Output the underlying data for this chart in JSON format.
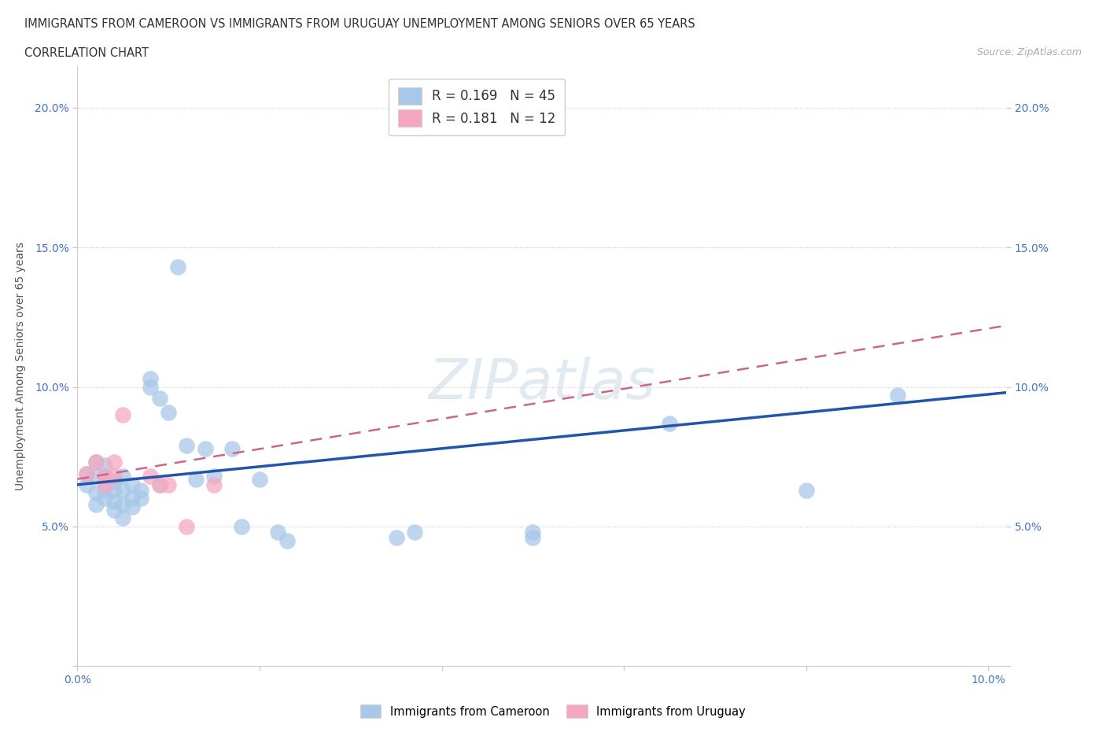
{
  "title_line1": "IMMIGRANTS FROM CAMEROON VS IMMIGRANTS FROM URUGUAY UNEMPLOYMENT AMONG SENIORS OVER 65 YEARS",
  "title_line2": "CORRELATION CHART",
  "source_text": "Source: ZipAtlas.com",
  "ylabel": "Unemployment Among Seniors over 65 years",
  "cameroon_color": "#a8c8e8",
  "uruguay_color": "#f4a8c0",
  "trend_cam_color": "#2255aa",
  "trend_uru_color": "#cc6688",
  "xlim": [
    0.0,
    0.102
  ],
  "ylim": [
    0.0,
    0.215
  ],
  "xticks": [
    0.0,
    0.02,
    0.04,
    0.06,
    0.08,
    0.1
  ],
  "xtick_labels": [
    "0.0%",
    "",
    "",
    "",
    "",
    "10.0%"
  ],
  "yticks": [
    0.0,
    0.05,
    0.1,
    0.15,
    0.2
  ],
  "ytick_labels": [
    "",
    "5.0%",
    "10.0%",
    "15.0%",
    "20.0%"
  ],
  "cameroon_R": "0.169",
  "cameroon_N": "45",
  "uruguay_R": "0.181",
  "uruguay_N": "12",
  "cameroon_x": [
    0.001,
    0.001,
    0.002,
    0.002,
    0.002,
    0.002,
    0.003,
    0.003,
    0.003,
    0.003,
    0.004,
    0.004,
    0.004,
    0.004,
    0.005,
    0.005,
    0.005,
    0.005,
    0.006,
    0.006,
    0.006,
    0.007,
    0.007,
    0.008,
    0.008,
    0.009,
    0.009,
    0.01,
    0.011,
    0.012,
    0.013,
    0.014,
    0.015,
    0.017,
    0.018,
    0.02,
    0.022,
    0.023,
    0.035,
    0.037,
    0.05,
    0.05,
    0.065,
    0.08,
    0.09
  ],
  "cameroon_y": [
    0.069,
    0.065,
    0.073,
    0.068,
    0.062,
    0.058,
    0.072,
    0.068,
    0.063,
    0.06,
    0.066,
    0.063,
    0.059,
    0.056,
    0.068,
    0.063,
    0.058,
    0.053,
    0.065,
    0.06,
    0.057,
    0.063,
    0.06,
    0.1,
    0.103,
    0.096,
    0.065,
    0.091,
    0.143,
    0.079,
    0.067,
    0.078,
    0.068,
    0.078,
    0.05,
    0.067,
    0.048,
    0.045,
    0.046,
    0.048,
    0.046,
    0.048,
    0.087,
    0.063,
    0.097
  ],
  "uruguay_x": [
    0.001,
    0.002,
    0.003,
    0.003,
    0.004,
    0.004,
    0.005,
    0.008,
    0.009,
    0.01,
    0.012,
    0.015
  ],
  "uruguay_y": [
    0.069,
    0.073,
    0.068,
    0.065,
    0.073,
    0.068,
    0.09,
    0.068,
    0.065,
    0.065,
    0.05,
    0.065
  ],
  "trend_cam_x0": 0.0,
  "trend_cam_y0": 0.065,
  "trend_cam_x1": 0.102,
  "trend_cam_y1": 0.098,
  "trend_uru_x0": 0.0,
  "trend_uru_y0": 0.067,
  "trend_uru_x1": 0.102,
  "trend_uru_y1": 0.122
}
